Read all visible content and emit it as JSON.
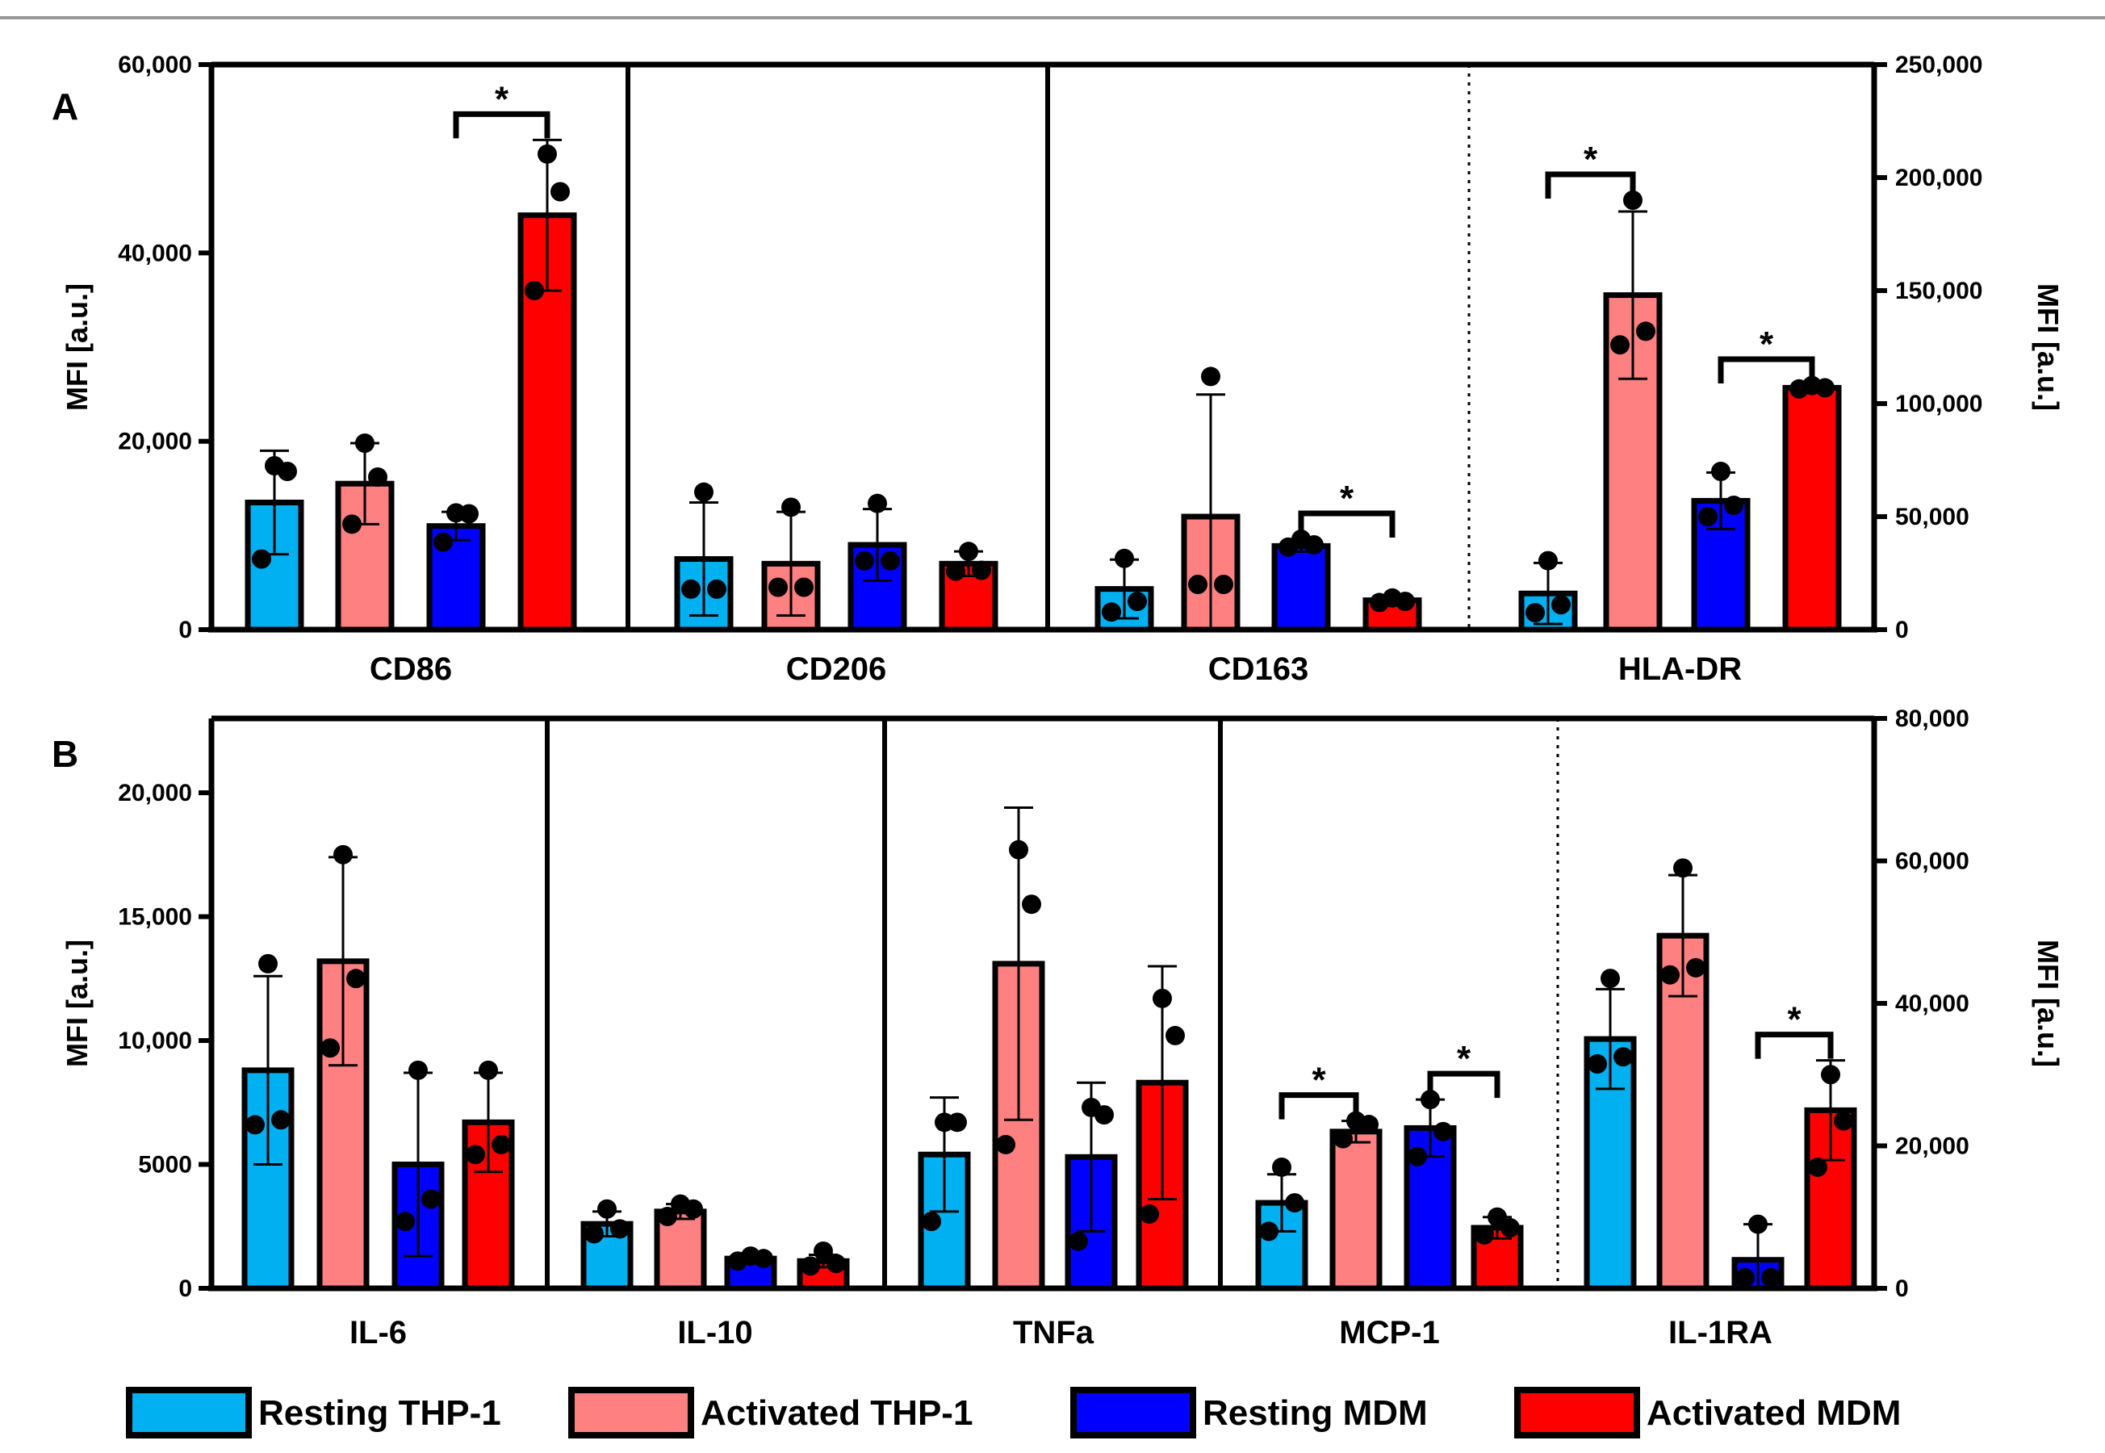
{
  "legend": [
    {
      "label": "Resting THP-1",
      "color": "#00B0F0"
    },
    {
      "label": "Activated THP-1",
      "color": "#FF8080"
    },
    {
      "label": "Resting MDM",
      "color": "#0000FF"
    },
    {
      "label": "Activated MDM",
      "color": "#FF0000"
    }
  ],
  "chart_data": [
    {
      "type": "bar",
      "panel": "A",
      "ylabel": "MFI [a.u.]",
      "ylabel_right": "MFI [a.u.]",
      "ylim_left": [
        0,
        60000
      ],
      "ylim_right": [
        0,
        250000
      ],
      "yticks_left": [
        "0",
        "20,000",
        "40,000",
        "60,000"
      ],
      "yticks_right": [
        "0",
        "50,000",
        "100,000",
        "150,000",
        "200,000",
        "250,000"
      ],
      "series_names": [
        "Resting THP-1",
        "Activated THP-1",
        "Resting MDM",
        "Activated MDM"
      ],
      "groups": [
        {
          "label": "CD86",
          "axis": "left",
          "bars": [
            {
              "value": 13500,
              "err": 5500,
              "points": [
                7500,
                16800,
                17400
              ]
            },
            {
              "value": 15500,
              "err": 4300,
              "points": [
                11200,
                16200,
                19800
              ]
            },
            {
              "value": 11000,
              "err": 1500,
              "points": [
                9300,
                12300,
                12400
              ]
            },
            {
              "value": 44000,
              "err": 8000,
              "points": [
                36000,
                46500,
                50500
              ]
            }
          ],
          "sig": [
            {
              "from": 2,
              "to": 3,
              "label": "*"
            }
          ]
        },
        {
          "label": "CD206",
          "axis": "left",
          "bars": [
            {
              "value": 7500,
              "err": 6000,
              "points": [
                4300,
                4300,
                14600
              ]
            },
            {
              "value": 7000,
              "err": 5500,
              "points": [
                4500,
                4500,
                13000
              ]
            },
            {
              "value": 9000,
              "err": 3800,
              "points": [
                7300,
                7300,
                13400
              ]
            },
            {
              "value": 7000,
              "err": 1300,
              "points": [
                6200,
                6300,
                8300
              ]
            }
          ],
          "sig": []
        },
        {
          "label": "CD163",
          "axis": "right",
          "bars": [
            {
              "value": 18000,
              "err": 13000,
              "points": [
                7800,
                12500,
                31500
              ]
            },
            {
              "value": 50000,
              "err": 54000,
              "points": [
                20000,
                20000,
                112000
              ]
            },
            {
              "value": 37000,
              "err": 2500,
              "points": [
                36500,
                37500,
                40000
              ]
            },
            {
              "value": 13000,
              "err": 1500,
              "points": [
                12000,
                12500,
                14000
              ]
            }
          ],
          "sig": [
            {
              "from": 2,
              "to": 3,
              "label": "*"
            }
          ]
        },
        {
          "label": "HLA-DR",
          "axis": "right",
          "bars": [
            {
              "value": 16000,
              "err": 13500,
              "points": [
                7500,
                11000,
                30500
              ]
            },
            {
              "value": 148000,
              "err": 37000,
              "points": [
                126000,
                132000,
                190000
              ]
            },
            {
              "value": 57000,
              "err": 12500,
              "points": [
                50000,
                55000,
                70000
              ]
            },
            {
              "value": 107000,
              "err": 1200,
              "points": [
                106500,
                107000,
                108000
              ]
            }
          ],
          "sig": [
            {
              "from": 0,
              "to": 1,
              "label": "*"
            },
            {
              "from": 2,
              "to": 3,
              "label": "*"
            }
          ]
        }
      ]
    },
    {
      "type": "bar",
      "panel": "B",
      "ylabel": "MFI [a.u.]",
      "ylabel_right": "MFI [a.u.]",
      "ylim_left": [
        0,
        23000
      ],
      "ylim_right": [
        0,
        80000
      ],
      "yticks_left": [
        "0",
        "5000",
        "10,000",
        "15,000",
        "20,000"
      ],
      "yticks_right": [
        "0",
        "20,000",
        "40,000",
        "60,000",
        "80,000"
      ],
      "series_names": [
        "Resting THP-1",
        "Activated THP-1",
        "Resting MDM",
        "Activated MDM"
      ],
      "groups": [
        {
          "label": "IL-6",
          "axis": "left",
          "bars": [
            {
              "value": 8800,
              "err": 3800,
              "points": [
                6600,
                6800,
                13100
              ]
            },
            {
              "value": 13200,
              "err": 4200,
              "points": [
                9700,
                12500,
                17500
              ]
            },
            {
              "value": 5000,
              "err": 3700,
              "points": [
                2700,
                3600,
                8800
              ]
            },
            {
              "value": 6700,
              "err": 2000,
              "points": [
                5400,
                5800,
                8800
              ]
            }
          ],
          "sig": []
        },
        {
          "label": "IL-10",
          "axis": "left",
          "bars": [
            {
              "value": 2600,
              "err": 500,
              "points": [
                2200,
                2400,
                3200
              ]
            },
            {
              "value": 3100,
              "err": 300,
              "points": [
                2900,
                3200,
                3400
              ]
            },
            {
              "value": 1200,
              "err": 150,
              "points": [
                1100,
                1200,
                1300
              ]
            },
            {
              "value": 1100,
              "err": 250,
              "points": [
                900,
                1000,
                1500
              ]
            }
          ],
          "sig": []
        },
        {
          "label": "TNFa",
          "axis": "left",
          "bars": [
            {
              "value": 5400,
              "err": 2300,
              "points": [
                2700,
                6700,
                6700
              ]
            },
            {
              "value": 13100,
              "err": 6300,
              "points": [
                5800,
                15500,
                17700
              ]
            },
            {
              "value": 5300,
              "err": 3000,
              "points": [
                1900,
                7000,
                7300
              ]
            },
            {
              "value": 8300,
              "err": 4700,
              "points": [
                3000,
                10200,
                11700
              ]
            }
          ],
          "sig": []
        },
        {
          "label": "MCP-1",
          "axis": "right",
          "bars": [
            {
              "value": 12000,
              "err": 4000,
              "points": [
                8000,
                12000,
                17000
              ]
            },
            {
              "value": 22000,
              "err": 1500,
              "points": [
                21000,
                23000,
                23500
              ]
            },
            {
              "value": 22500,
              "err": 4000,
              "points": [
                18500,
                22000,
                26500
              ]
            },
            {
              "value": 8500,
              "err": 1500,
              "points": [
                7500,
                8500,
                10000
              ]
            }
          ],
          "sig": [
            {
              "from": 0,
              "to": 1,
              "label": "*"
            },
            {
              "from": 2,
              "to": 3,
              "label": "*"
            }
          ]
        },
        {
          "label": "IL-1RA",
          "axis": "right",
          "bars": [
            {
              "value": 35000,
              "err": 7000,
              "points": [
                31500,
                32500,
                43500
              ]
            },
            {
              "value": 49500,
              "err": 8500,
              "points": [
                44000,
                45000,
                59000
              ]
            },
            {
              "value": 4000,
              "err": 5000,
              "points": [
                1500,
                1500,
                9000
              ]
            },
            {
              "value": 25000,
              "err": 7000,
              "points": [
                17000,
                23500,
                30000
              ]
            }
          ],
          "sig": [
            {
              "from": 2,
              "to": 3,
              "label": "*"
            }
          ]
        }
      ]
    }
  ]
}
